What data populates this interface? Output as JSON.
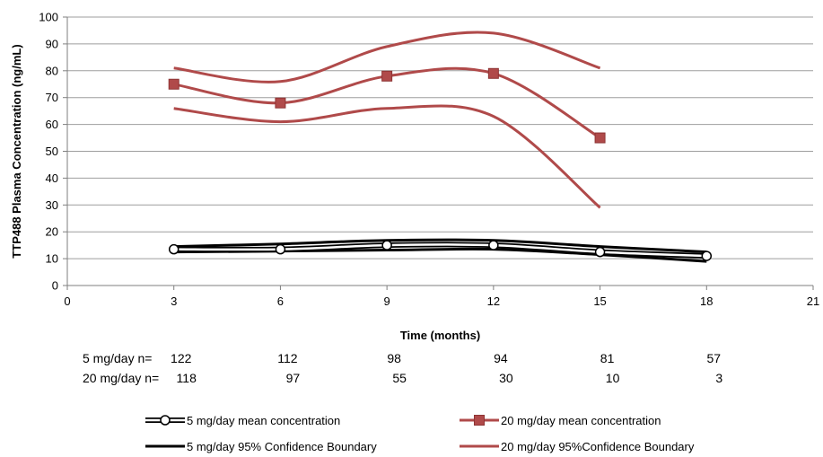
{
  "chart_data": {
    "type": "line",
    "xlabel": "Time (months)",
    "ylabel": "TTP488 Plasma Concentration (ng/mL)",
    "xlim": [
      0,
      21
    ],
    "ylim": [
      0,
      100
    ],
    "xticks": [
      0,
      3,
      6,
      9,
      12,
      15,
      18,
      21
    ],
    "yticks": [
      0,
      10,
      20,
      30,
      40,
      50,
      60,
      70,
      80,
      90,
      100
    ],
    "grid": "horizontal",
    "legend_position": "bottom",
    "series": [
      {
        "name": "5 mg/day mean concentration",
        "color": "#000000",
        "marker": "circle-open",
        "x": [
          3,
          6,
          9,
          12,
          15,
          18
        ],
        "y": [
          13.5,
          13.5,
          15,
          15,
          12.5,
          11
        ]
      },
      {
        "name": "20 mg/day mean concentration",
        "color": "#b04a4a",
        "marker": "square",
        "x": [
          3,
          6,
          9,
          12,
          15
        ],
        "y": [
          75,
          68,
          78,
          79,
          55
        ]
      },
      {
        "name": "5 mg/day 95% Confidence Boundary",
        "color": "#000000",
        "marker": "none",
        "bounds": [
          {
            "x": [
              3,
              6,
              9,
              12,
              15,
              18
            ],
            "y": [
              14.5,
              15.5,
              16.8,
              16.8,
              14.5,
              12.5
            ]
          },
          {
            "x": [
              3,
              6,
              9,
              12,
              15,
              18
            ],
            "y": [
              12.5,
              12.8,
              13.2,
              13.5,
              11.5,
              9
            ]
          }
        ]
      },
      {
        "name": "20 mg/day 95%Confidence Boundary",
        "color": "#b04a4a",
        "marker": "none",
        "bounds": [
          {
            "x": [
              3,
              6,
              9,
              12,
              15
            ],
            "y": [
              81,
              76,
              89,
              94,
              81
            ]
          },
          {
            "x": [
              3,
              6,
              9,
              12,
              15
            ],
            "y": [
              66,
              61,
              66,
              63,
              29
            ]
          }
        ]
      }
    ],
    "sample_sizes": {
      "rows": [
        {
          "label": "5 mg/day n=",
          "x": [
            3,
            6,
            9,
            12,
            15,
            18
          ],
          "values": [
            "122",
            "112",
            "98",
            "94",
            "81",
            "57"
          ]
        },
        {
          "label": "20 mg/day n=",
          "x": [
            3,
            6,
            9,
            12,
            15,
            18
          ],
          "values": [
            "118",
            "97",
            "55",
            "30",
            "10",
            "3"
          ]
        }
      ]
    }
  }
}
